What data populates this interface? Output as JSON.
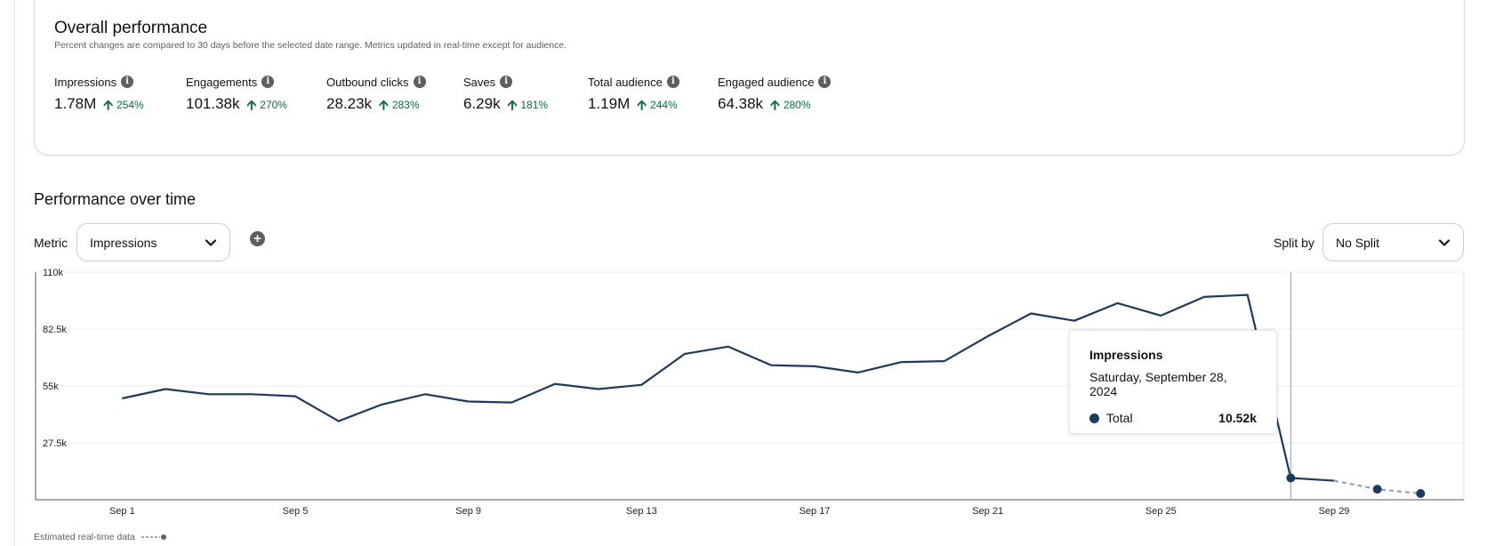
{
  "overall": {
    "title": "Overall performance",
    "subtitle": "Percent changes are compared to 30 days before the selected date range. Metrics updated in real-time except for audience.",
    "metrics": [
      {
        "label": "Impressions",
        "value": "1.78M",
        "change": "254%"
      },
      {
        "label": "Engagements",
        "value": "101.38k",
        "change": "270%"
      },
      {
        "label": "Outbound clicks",
        "value": "28.23k",
        "change": "283%"
      },
      {
        "label": "Saves",
        "value": "6.29k",
        "change": "181%"
      },
      {
        "label": "Total audience",
        "value": "1.19M",
        "change": "244%"
      },
      {
        "label": "Engaged audience",
        "value": "64.38k",
        "change": "280%"
      }
    ],
    "change_color": "#0a6b3b"
  },
  "performance": {
    "title": "Performance over time",
    "metric_label": "Metric",
    "metric_value": "Impressions",
    "split_label": "Split by",
    "split_value": "No Split"
  },
  "tooltip": {
    "title": "Impressions",
    "date": "Saturday, September 28, 2024",
    "series": "Total",
    "value": "10.52k"
  },
  "legend_note": "Estimated real-time data",
  "icons": {
    "info": "info-icon",
    "up_arrow": "arrow-up-icon",
    "add": "add-icon",
    "dropdown": "chevron-down-icon"
  },
  "colors": {
    "line": "#1b3a5e",
    "estimated": "#8fa3b6",
    "positive": "#0a6b3b"
  },
  "chart_data": {
    "type": "line",
    "ylim": [
      0,
      110000
    ],
    "yticks": [
      27500,
      55000,
      82500,
      110000
    ],
    "ytick_labels": [
      "27.5k",
      "55k",
      "82.5k",
      "110k"
    ],
    "x_labels": [
      "Sep 1",
      "Sep 5",
      "Sep 9",
      "Sep 13",
      "Sep 17",
      "Sep 21",
      "Sep 25",
      "Sep 29"
    ],
    "x_label_days": [
      1,
      5,
      9,
      13,
      17,
      21,
      25,
      29
    ],
    "x_domain": [
      -1,
      32
    ],
    "series": [
      {
        "name": "Total",
        "x": [
          1,
          2,
          3,
          4,
          5,
          6,
          7,
          8,
          9,
          10,
          11,
          12,
          13,
          14,
          15,
          16,
          17,
          18,
          19,
          20,
          21,
          22,
          23,
          24,
          25,
          26,
          27,
          28
        ],
        "values": [
          49000,
          53500,
          51000,
          51000,
          50000,
          38000,
          46000,
          51000,
          47500,
          47000,
          56000,
          53500,
          55500,
          70500,
          74000,
          65000,
          64500,
          61500,
          66500,
          67000,
          79000,
          90000,
          86500,
          95000,
          89000,
          98000,
          99000,
          10520
        ],
        "estimated": {
          "x": [
            28,
            29,
            30,
            31
          ],
          "values": [
            10520,
            9200,
            5100,
            3000
          ]
        }
      }
    ],
    "highlight_x": 28,
    "markers_x": [
      28,
      30,
      31
    ]
  }
}
